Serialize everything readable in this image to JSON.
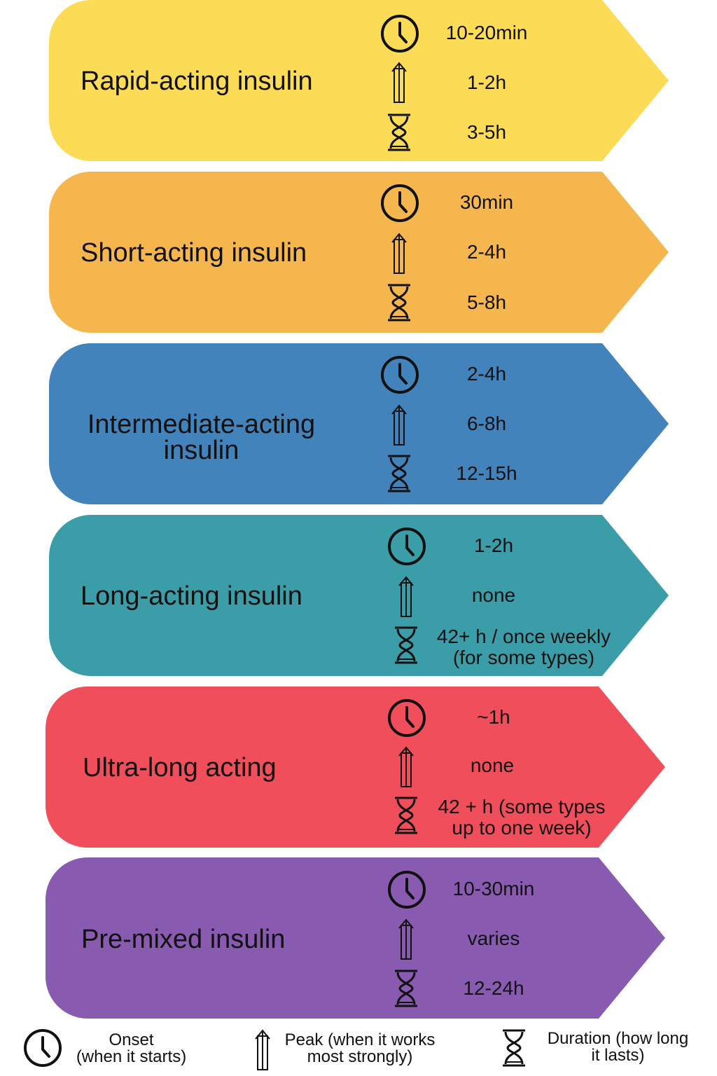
{
  "cards": [
    {
      "title": "Rapid-acting insulin",
      "color": "#fcdc57",
      "onset": "10-20min",
      "peak": "1-2h",
      "duration": "3-5h"
    },
    {
      "title": "Short-acting insulin",
      "color": "#f6b64e",
      "onset": "30min",
      "peak": "2-4h",
      "duration": "5-8h"
    },
    {
      "title": "Intermediate-acting\ninsulin",
      "color": "#4383bb",
      "onset": "2-4h",
      "peak": "6-8h",
      "duration": "12-15h"
    },
    {
      "title": "Long-acting insulin",
      "color": "#3a9da8",
      "onset": "1-2h",
      "peak": "none",
      "duration": "42+ h / once weekly\n(for some types)"
    },
    {
      "title": "Ultra-long acting",
      "color": "#f04e5a",
      "onset": "~1h",
      "peak": "none",
      "duration": "42 + h (some types\nup to one week)"
    },
    {
      "title": "Pre-mixed insulin",
      "color": "#885bb1",
      "onset": "10-30min",
      "peak": "varies",
      "duration": "12-24h"
    }
  ],
  "icons": {
    "onset": "clock-icon",
    "peak": "arrow-up-icon",
    "duration": "hourglass-icon"
  },
  "legend": {
    "onset": "Onset\n(when it starts)",
    "peak": "Peak (when it works\nmost strongly)",
    "duration": "Duration (how long\nit lasts)"
  }
}
